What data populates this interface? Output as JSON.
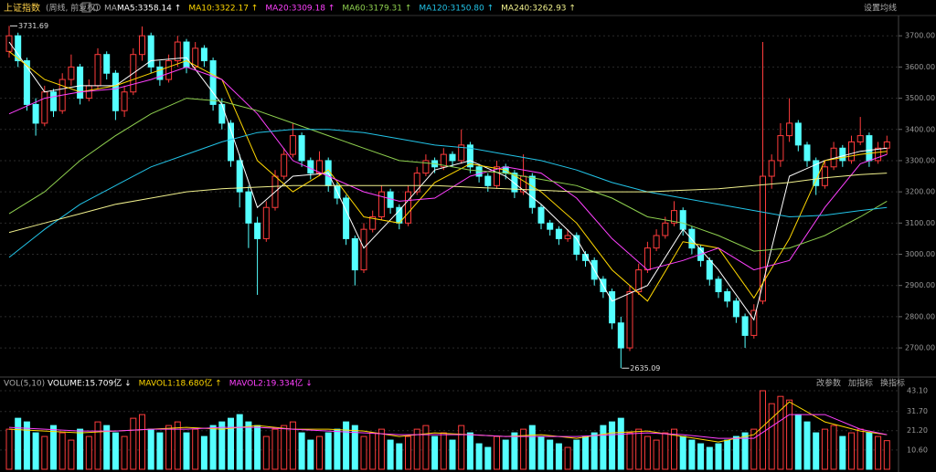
{
  "chart_data": [
    {
      "type": "candlestick",
      "title": "上证指数",
      "subtitle": "(周线, 前复权)",
      "ma_label": "MA",
      "settings_label": "设置均线",
      "up_color": "#ff3c3c",
      "down_color": "#54ffff",
      "grid": true,
      "ylim": [
        2630,
        3762
      ],
      "yticks": [
        {
          "value": 2700,
          "label": "2700.00"
        },
        {
          "value": 2800,
          "label": "2800.00"
        },
        {
          "value": 2900,
          "label": "2900.00"
        },
        {
          "value": 3000,
          "label": "3000.00"
        },
        {
          "value": 3100,
          "label": "3100.00"
        },
        {
          "value": 3200,
          "label": "3200.00"
        },
        {
          "value": 3300,
          "label": "3300.00"
        },
        {
          "value": 3400,
          "label": "3400.00"
        },
        {
          "value": 3500,
          "label": "3500.00"
        },
        {
          "value": 3600,
          "label": "3600.00"
        },
        {
          "value": 3700,
          "label": "3700.00"
        }
      ],
      "ohlc": [
        [
          3650,
          3731.69,
          3630,
          3700
        ],
        [
          3700,
          3710,
          3600,
          3620
        ],
        [
          3620,
          3630,
          3460,
          3480
        ],
        [
          3480,
          3500,
          3380,
          3420
        ],
        [
          3420,
          3540,
          3410,
          3520
        ],
        [
          3520,
          3530,
          3440,
          3460
        ],
        [
          3460,
          3580,
          3450,
          3560
        ],
        [
          3560,
          3640,
          3540,
          3600
        ],
        [
          3600,
          3610,
          3480,
          3500
        ],
        [
          3500,
          3560,
          3490,
          3540
        ],
        [
          3540,
          3660,
          3530,
          3640
        ],
        [
          3640,
          3650,
          3560,
          3580
        ],
        [
          3580,
          3590,
          3430,
          3460
        ],
        [
          3460,
          3540,
          3440,
          3520
        ],
        [
          3520,
          3660,
          3510,
          3640
        ],
        [
          3640,
          3730,
          3620,
          3700
        ],
        [
          3700,
          3710,
          3580,
          3600
        ],
        [
          3600,
          3620,
          3540,
          3560
        ],
        [
          3560,
          3640,
          3550,
          3620
        ],
        [
          3620,
          3700,
          3600,
          3680
        ],
        [
          3680,
          3690,
          3580,
          3600
        ],
        [
          3600,
          3680,
          3590,
          3660
        ],
        [
          3660,
          3670,
          3600,
          3620
        ],
        [
          3620,
          3630,
          3460,
          3480
        ],
        [
          3480,
          3500,
          3400,
          3420
        ],
        [
          3420,
          3430,
          3280,
          3300
        ],
        [
          3300,
          3320,
          3150,
          3200
        ],
        [
          3200,
          3220,
          3020,
          3100
        ],
        [
          3100,
          3120,
          2870,
          3050
        ],
        [
          3050,
          3170,
          3040,
          3150
        ],
        [
          3150,
          3270,
          3140,
          3250
        ],
        [
          3250,
          3340,
          3240,
          3320
        ],
        [
          3320,
          3420,
          3310,
          3380
        ],
        [
          3380,
          3390,
          3280,
          3300
        ],
        [
          3300,
          3310,
          3240,
          3260
        ],
        [
          3260,
          3330,
          3250,
          3300
        ],
        [
          3300,
          3310,
          3200,
          3220
        ],
        [
          3220,
          3230,
          3160,
          3180
        ],
        [
          3180,
          3190,
          3030,
          3050
        ],
        [
          3050,
          3060,
          2900,
          2950
        ],
        [
          2950,
          3100,
          2940,
          3080
        ],
        [
          3080,
          3140,
          3070,
          3120
        ],
        [
          3120,
          3220,
          3110,
          3200
        ],
        [
          3200,
          3210,
          3130,
          3150
        ],
        [
          3150,
          3160,
          3080,
          3100
        ],
        [
          3100,
          3220,
          3090,
          3200
        ],
        [
          3200,
          3280,
          3190,
          3260
        ],
        [
          3260,
          3320,
          3250,
          3300
        ],
        [
          3300,
          3310,
          3260,
          3280
        ],
        [
          3280,
          3340,
          3270,
          3320
        ],
        [
          3320,
          3330,
          3280,
          3300
        ],
        [
          3300,
          3400,
          3290,
          3350
        ],
        [
          3350,
          3360,
          3260,
          3280
        ],
        [
          3280,
          3290,
          3230,
          3250
        ],
        [
          3250,
          3260,
          3200,
          3220
        ],
        [
          3220,
          3300,
          3210,
          3280
        ],
        [
          3280,
          3290,
          3240,
          3260
        ],
        [
          3260,
          3270,
          3180,
          3200
        ],
        [
          3200,
          3320,
          3190,
          3250
        ],
        [
          3250,
          3260,
          3130,
          3150
        ],
        [
          3150,
          3160,
          3080,
          3100
        ],
        [
          3100,
          3110,
          3060,
          3080
        ],
        [
          3080,
          3090,
          3030,
          3050
        ],
        [
          3050,
          3080,
          3040,
          3060
        ],
        [
          3060,
          3070,
          2980,
          3000
        ],
        [
          3000,
          3010,
          2960,
          2980
        ],
        [
          2980,
          2990,
          2900,
          2920
        ],
        [
          2920,
          2930,
          2860,
          2880
        ],
        [
          2880,
          2890,
          2760,
          2780
        ],
        [
          2780,
          2800,
          2635.09,
          2700
        ],
        [
          2700,
          2900,
          2690,
          2880
        ],
        [
          2880,
          2970,
          2870,
          2950
        ],
        [
          2950,
          3040,
          2940,
          3020
        ],
        [
          3020,
          3080,
          3010,
          3060
        ],
        [
          3060,
          3120,
          3050,
          3100
        ],
        [
          3100,
          3170,
          3090,
          3140
        ],
        [
          3140,
          3150,
          3060,
          3080
        ],
        [
          3080,
          3090,
          3000,
          3020
        ],
        [
          3020,
          3030,
          2960,
          2980
        ],
        [
          2980,
          2990,
          2900,
          2920
        ],
        [
          2920,
          2930,
          2860,
          2880
        ],
        [
          2880,
          2890,
          2830,
          2850
        ],
        [
          2850,
          2860,
          2780,
          2800
        ],
        [
          2800,
          2810,
          2700,
          2740
        ],
        [
          2740,
          2840,
          2730,
          2820
        ],
        [
          2850,
          3680,
          2840,
          3250
        ],
        [
          3250,
          3320,
          3210,
          3300
        ],
        [
          3300,
          3420,
          3280,
          3380
        ],
        [
          3380,
          3500,
          3360,
          3420
        ],
        [
          3420,
          3430,
          3330,
          3350
        ],
        [
          3350,
          3360,
          3280,
          3300
        ],
        [
          3300,
          3310,
          3190,
          3220
        ],
        [
          3220,
          3300,
          3210,
          3280
        ],
        [
          3280,
          3360,
          3270,
          3340
        ],
        [
          3340,
          3350,
          3280,
          3300
        ],
        [
          3300,
          3380,
          3290,
          3360
        ],
        [
          3360,
          3440,
          3350,
          3380
        ],
        [
          3380,
          3390,
          3280,
          3300
        ],
        [
          3300,
          3360,
          3290,
          3340
        ],
        [
          3340,
          3380,
          3320,
          3360
        ]
      ],
      "ma_x": [
        0,
        4,
        8,
        12,
        16,
        20,
        24,
        28,
        32,
        36,
        40,
        44,
        48,
        52,
        56,
        60,
        64,
        68,
        72,
        76,
        80,
        84,
        88,
        92,
        96,
        99
      ],
      "series": [
        {
          "name": "MA5:3358.14 ↑",
          "color": "#ffffff",
          "values": [
            3680,
            3520,
            3540,
            3540,
            3620,
            3630,
            3480,
            3150,
            3250,
            3260,
            3020,
            3140,
            3270,
            3300,
            3250,
            3160,
            3050,
            2850,
            2900,
            3080,
            2950,
            2790,
            3250,
            3300,
            3330,
            3340
          ]
        },
        {
          "name": "MA10:3322.17 ↑",
          "color": "#ffd700",
          "values": [
            3650,
            3560,
            3520,
            3540,
            3580,
            3620,
            3560,
            3300,
            3200,
            3270,
            3120,
            3100,
            3230,
            3290,
            3270,
            3200,
            3100,
            2950,
            2850,
            3040,
            3020,
            2860,
            3050,
            3300,
            3320,
            3330
          ]
        },
        {
          "name": "MA20:3309.18 ↑",
          "color": "#ff40ff",
          "values": [
            3450,
            3500,
            3520,
            3530,
            3560,
            3600,
            3560,
            3450,
            3300,
            3250,
            3200,
            3170,
            3180,
            3250,
            3280,
            3260,
            3180,
            3050,
            2950,
            2980,
            3020,
            2950,
            2980,
            3150,
            3290,
            3320
          ]
        },
        {
          "name": "MA60:3179.31 ↑",
          "color": "#8fd14f",
          "values": [
            3130,
            3200,
            3300,
            3380,
            3450,
            3500,
            3490,
            3460,
            3420,
            3380,
            3340,
            3300,
            3290,
            3270,
            3260,
            3240,
            3220,
            3180,
            3120,
            3100,
            3060,
            3010,
            3020,
            3060,
            3120,
            3170
          ]
        },
        {
          "name": "MA120:3150.80 ↑",
          "color": "#22c4e8",
          "values": [
            2990,
            3080,
            3160,
            3220,
            3280,
            3320,
            3360,
            3390,
            3400,
            3400,
            3390,
            3370,
            3350,
            3340,
            3320,
            3300,
            3270,
            3230,
            3200,
            3180,
            3160,
            3140,
            3120,
            3125,
            3140,
            3150
          ]
        },
        {
          "name": "MA240:3262.93 ↑",
          "color": "#f0f08c",
          "values": [
            3070,
            3100,
            3130,
            3160,
            3180,
            3200,
            3210,
            3215,
            3220,
            3220,
            3220,
            3220,
            3220,
            3215,
            3210,
            3205,
            3200,
            3200,
            3200,
            3205,
            3210,
            3220,
            3230,
            3245,
            3255,
            3260
          ]
        }
      ],
      "annotations": [
        {
          "text": "3731.69",
          "value": 3731.69
        },
        {
          "text": "2635.09",
          "value": 2635.09
        }
      ]
    },
    {
      "type": "volume",
      "title": "VOL(5,10)",
      "volume_label": "VOLUME:15.709亿 ↓",
      "buttons": [
        "改参数",
        "加指标",
        "换指标"
      ],
      "ylim": [
        0,
        43.1
      ],
      "yticks": [
        {
          "value": 43.1,
          "label": "43.10"
        },
        {
          "value": 31.7,
          "label": "31.70"
        },
        {
          "value": 21.2,
          "label": "21.20"
        },
        {
          "value": 10.6,
          "label": "10.60"
        }
      ],
      "values": [
        22,
        28,
        26,
        20,
        18,
        24,
        20,
        16,
        22,
        18,
        26,
        24,
        20,
        18,
        28,
        30,
        22,
        20,
        24,
        26,
        20,
        22,
        18,
        24,
        26,
        28,
        30,
        26,
        24,
        18,
        22,
        24,
        26,
        20,
        16,
        18,
        20,
        22,
        26,
        24,
        18,
        20,
        22,
        16,
        14,
        18,
        22,
        24,
        18,
        20,
        16,
        24,
        20,
        14,
        12,
        18,
        16,
        20,
        22,
        24,
        18,
        16,
        14,
        12,
        16,
        18,
        20,
        24,
        26,
        28,
        20,
        22,
        18,
        16,
        20,
        22,
        18,
        16,
        14,
        12,
        14,
        16,
        18,
        20,
        22,
        43.1,
        36,
        40,
        38,
        30,
        26,
        20,
        22,
        24,
        18,
        20,
        22,
        20,
        18,
        15.709
      ],
      "ma_x": [
        0,
        4,
        8,
        12,
        16,
        20,
        24,
        28,
        32,
        36,
        40,
        44,
        48,
        52,
        56,
        60,
        64,
        68,
        72,
        76,
        80,
        84,
        88,
        92,
        96,
        99
      ],
      "series": [
        {
          "name": "MAVOL1:18.680亿 ↑",
          "color": "#ffd700",
          "values": [
            22,
            21,
            20,
            21,
            22,
            23,
            22,
            24,
            22,
            22,
            21,
            18,
            20,
            19,
            18,
            19,
            17,
            20,
            21,
            18,
            15,
            19,
            37,
            26,
            21,
            19
          ]
        },
        {
          "name": "MAVOL2:19.334亿 ↓",
          "color": "#ff40ff",
          "values": [
            23,
            22,
            21,
            21,
            22,
            22,
            23,
            23,
            22,
            21,
            20,
            19,
            19,
            19,
            18,
            18,
            18,
            19,
            20,
            19,
            17,
            17,
            30,
            30,
            22,
            19
          ]
        }
      ]
    }
  ]
}
